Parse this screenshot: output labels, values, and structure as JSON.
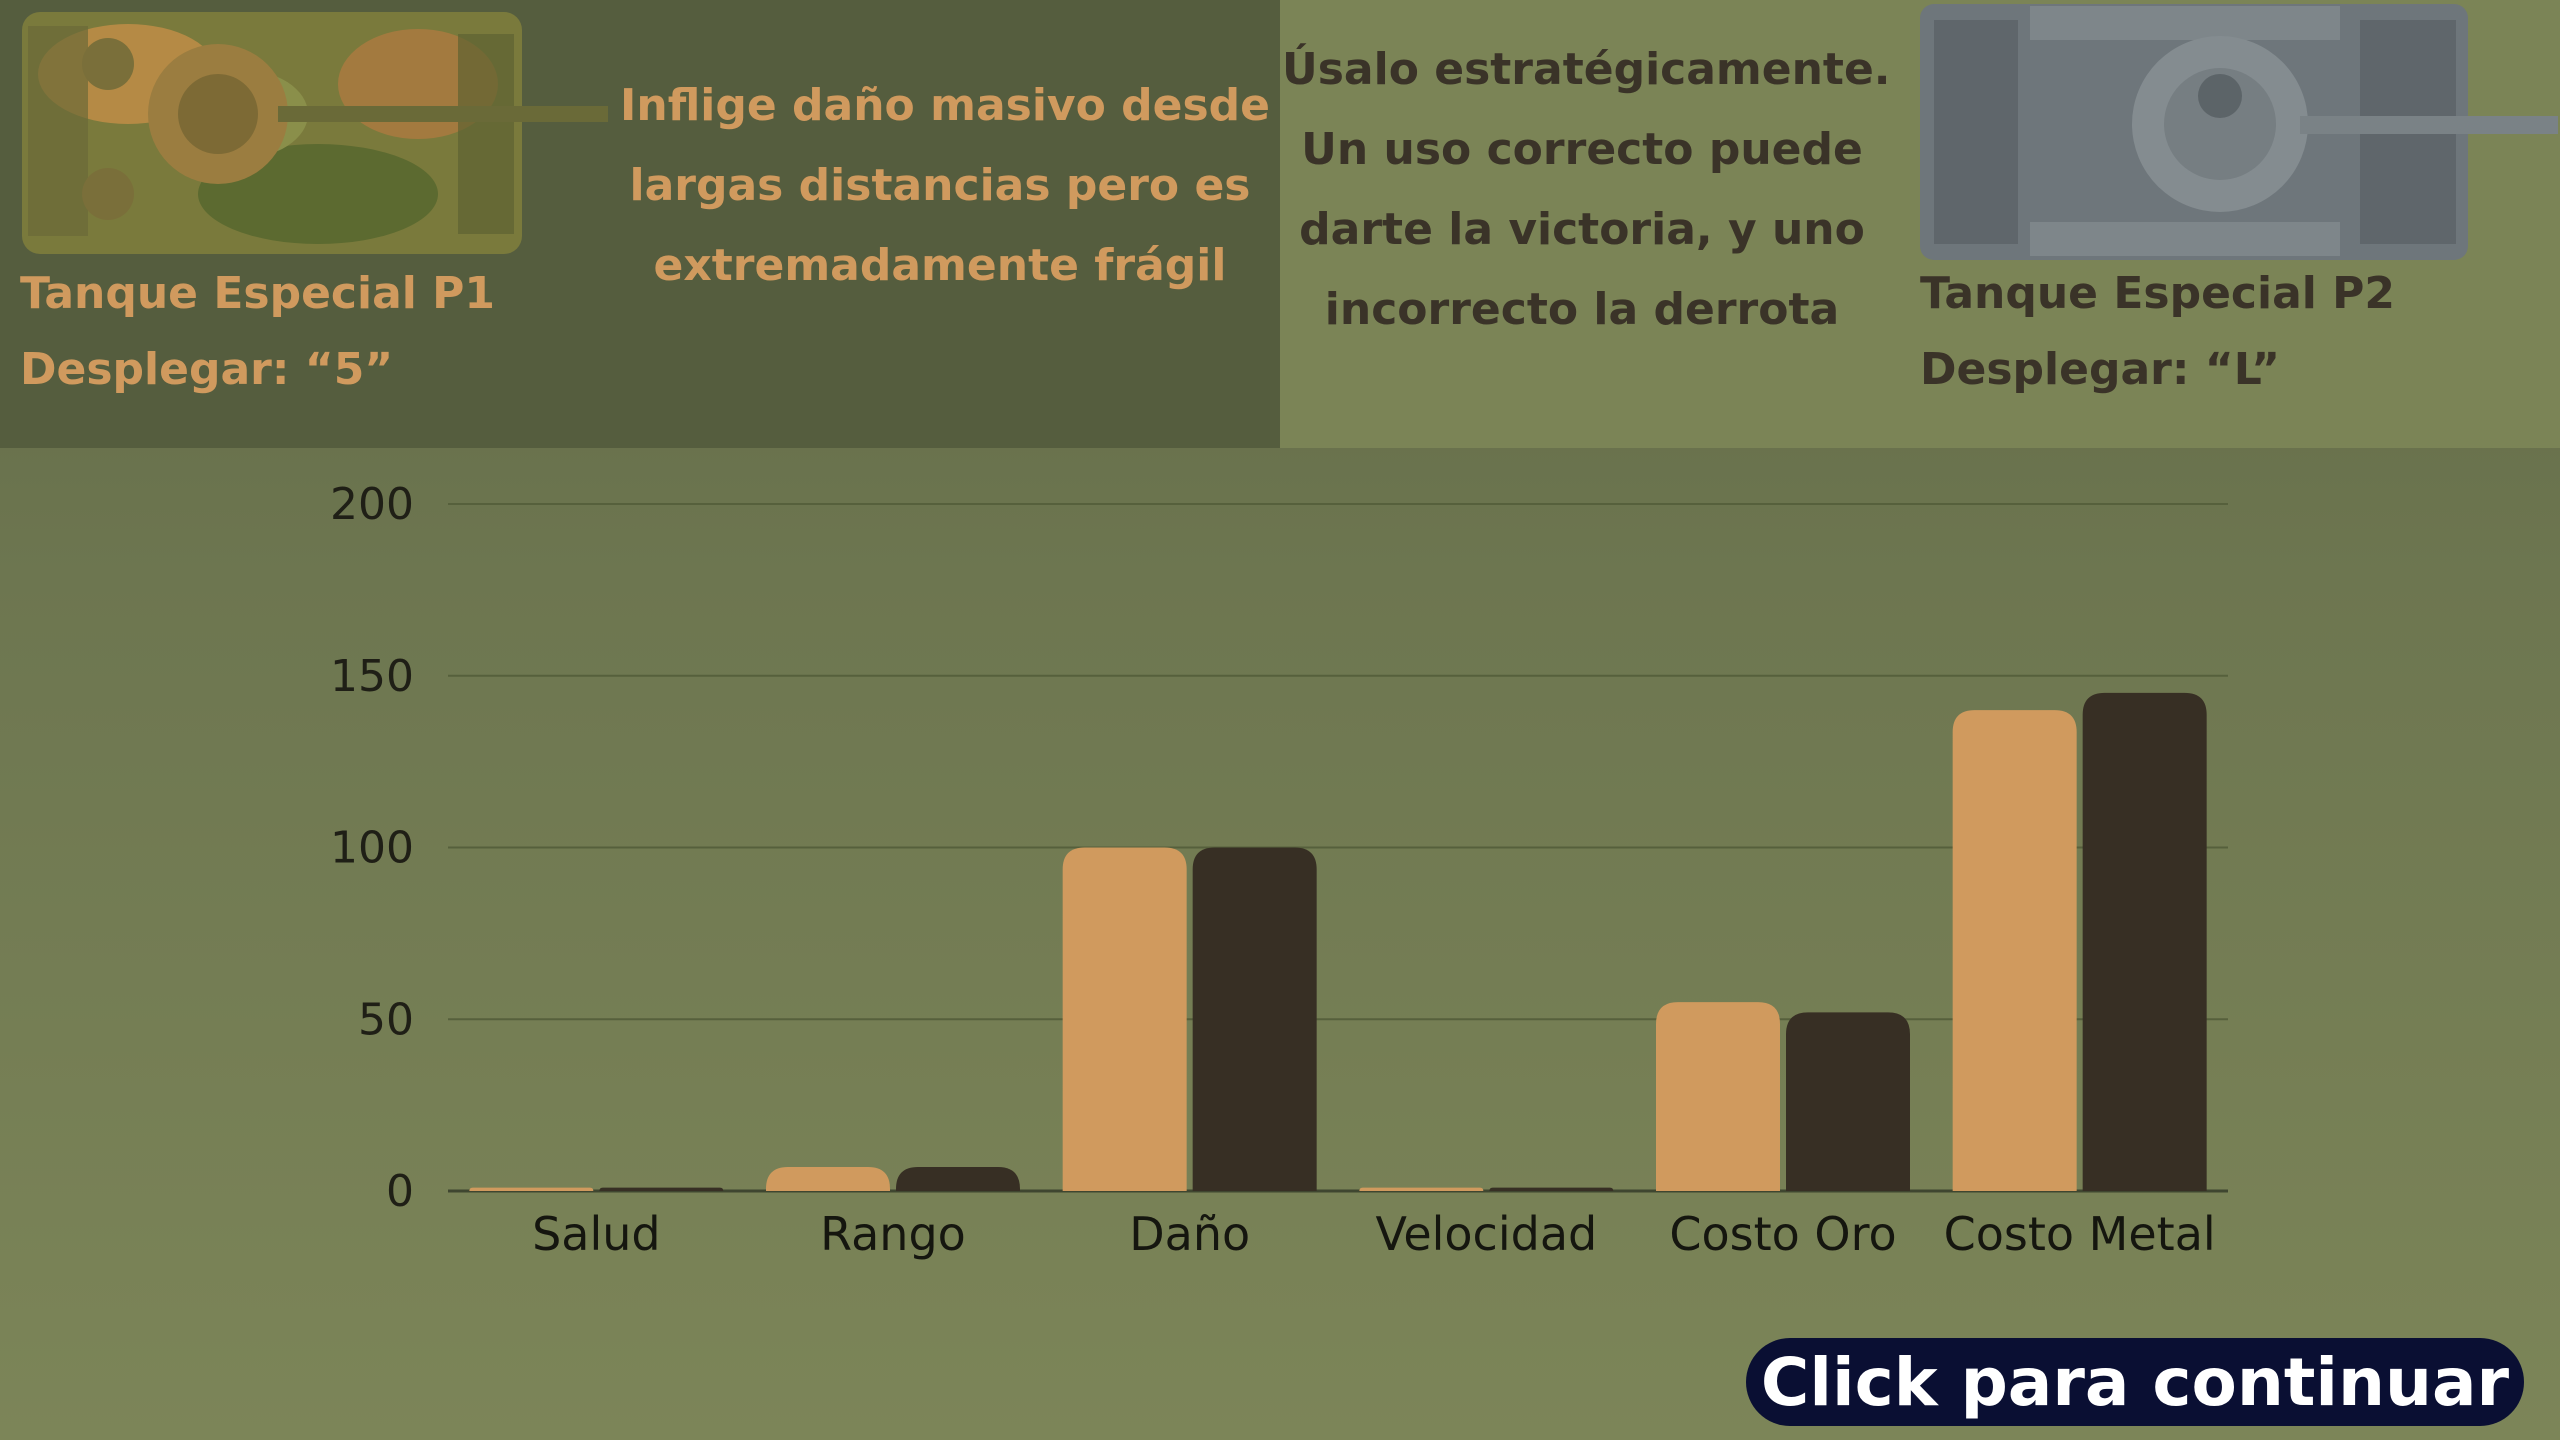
{
  "header": {
    "p1": {
      "name": "Tanque Especial P1",
      "deploy": "Desplegar: “5”",
      "description_lines": [
        "Inflige daño masivo desde",
        "largas distancias pero es",
        "extremadamente frágil"
      ],
      "color": "#d09a5e"
    },
    "p2": {
      "name": "Tanque Especial P2",
      "deploy": "Desplegar: “L”",
      "description_lines": [
        "Úsalo estratégicamente.",
        "Un uso correcto puede",
        "darte la victoria, y uno",
        "incorrecto la derrota"
      ],
      "color": "#3a3328"
    }
  },
  "chart_data": {
    "type": "bar",
    "categories": [
      "Salud",
      "Rango",
      "Daño",
      "Velocidad",
      "Costo Oro",
      "Costo Metal"
    ],
    "series": [
      {
        "values": [
          1,
          7,
          100,
          1,
          55,
          140
        ],
        "color": "#d09a5e"
      },
      {
        "values": [
          1,
          7,
          100,
          1,
          52,
          145
        ],
        "color": "#372f24"
      }
    ],
    "ylim": [
      0,
      200
    ],
    "yticks": [
      0,
      50,
      100,
      150,
      200
    ],
    "grid": true,
    "legend": "none"
  },
  "cta": {
    "label": "Click para continuar"
  }
}
